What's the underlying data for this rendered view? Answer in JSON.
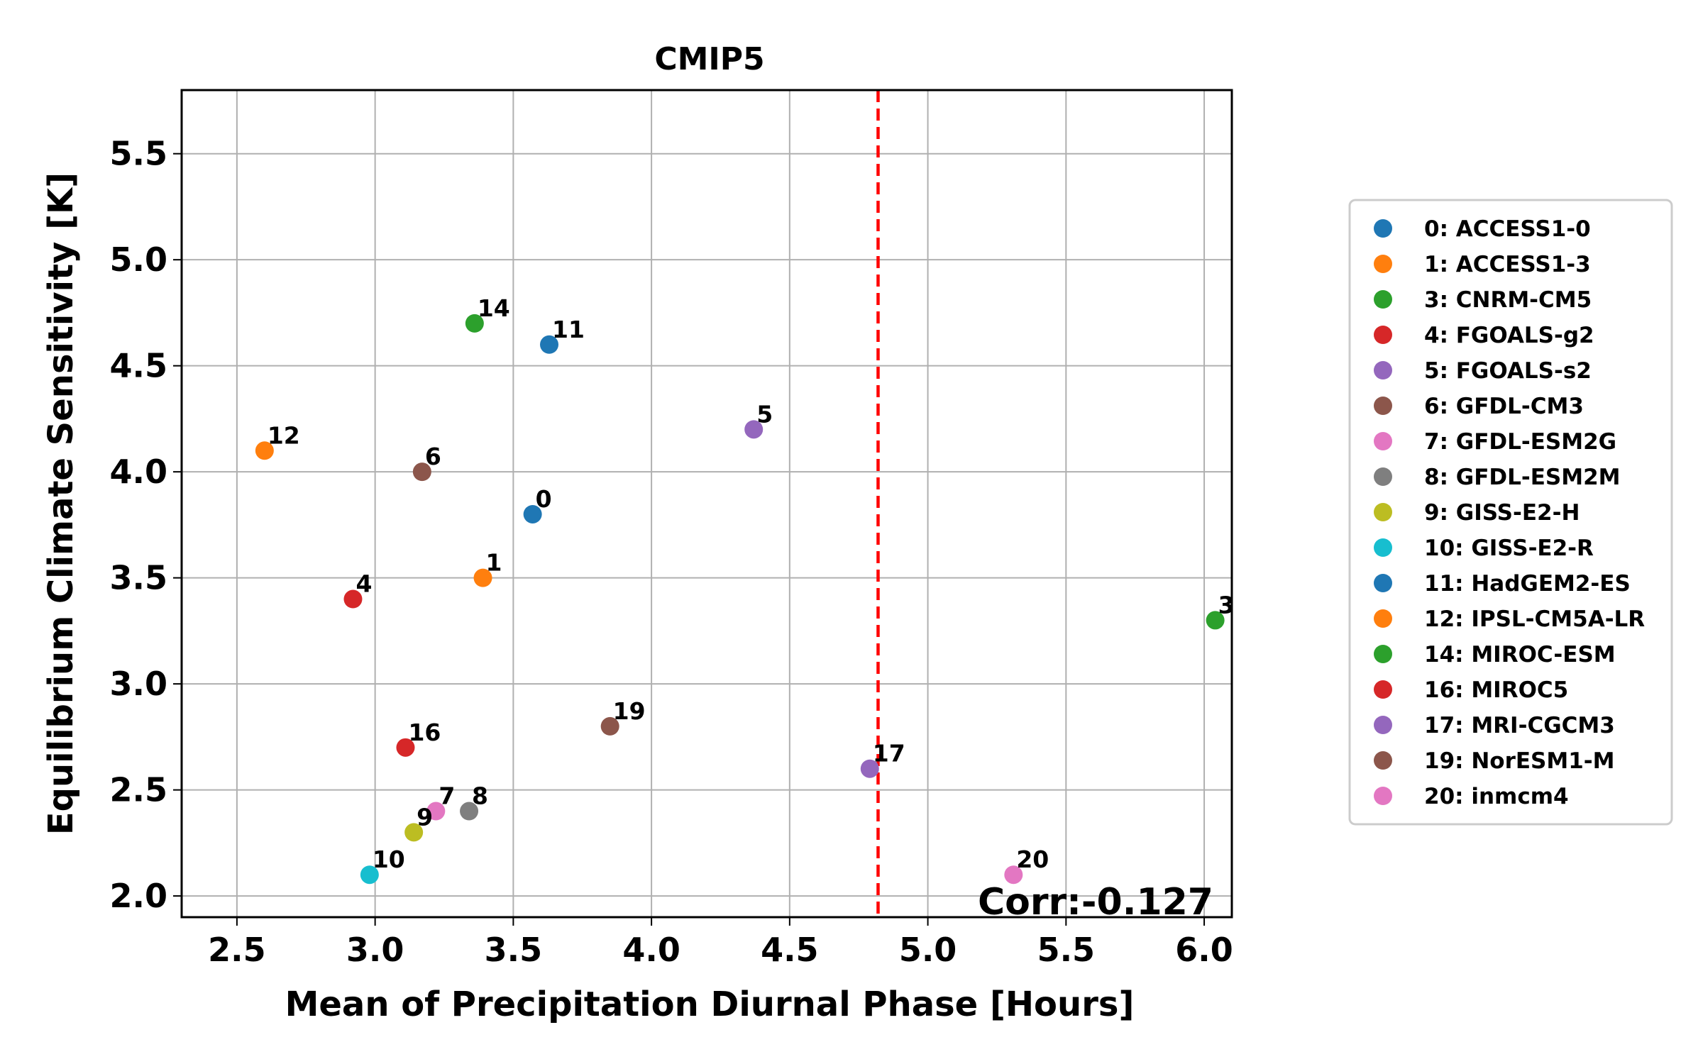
{
  "chart_data": {
    "type": "scatter",
    "title": "CMIP5",
    "xlabel": "Mean of Precipitation Diurnal Phase [Hours]",
    "ylabel": "Equilibrium Climate Sensitivity [K]",
    "xlim": [
      2.3,
      6.1
    ],
    "ylim": [
      1.9,
      5.8
    ],
    "xticks": [
      2.5,
      3.0,
      3.5,
      4.0,
      4.5,
      5.0,
      5.5,
      6.0
    ],
    "yticks": [
      2.0,
      2.5,
      3.0,
      3.5,
      4.0,
      4.5,
      5.0,
      5.5
    ],
    "xtick_labels": [
      "2.5",
      "3.0",
      "3.5",
      "4.0",
      "4.5",
      "5.0",
      "5.5",
      "6.0"
    ],
    "ytick_labels": [
      "2.0",
      "2.5",
      "3.0",
      "3.5",
      "4.0",
      "4.5",
      "5.0",
      "5.5"
    ],
    "grid": true,
    "legend_position": "right",
    "reference_line": {
      "orientation": "vertical",
      "x": 4.82,
      "color": "#ff0000",
      "style": "dashed"
    },
    "annotation": "Corr:-0.127",
    "points": [
      {
        "label": "0",
        "legend": "0: ACCESS1-0",
        "x": 3.57,
        "y": 3.8,
        "color": "#1f77b4"
      },
      {
        "label": "1",
        "legend": "1: ACCESS1-3",
        "x": 3.39,
        "y": 3.5,
        "color": "#ff7f0e"
      },
      {
        "label": "3",
        "legend": "3: CNRM-CM5",
        "x": 6.04,
        "y": 3.3,
        "color": "#2ca02c"
      },
      {
        "label": "4",
        "legend": "4: FGOALS-g2",
        "x": 2.92,
        "y": 3.4,
        "color": "#d62728"
      },
      {
        "label": "5",
        "legend": "5: FGOALS-s2",
        "x": 4.37,
        "y": 4.2,
        "color": "#9467bd"
      },
      {
        "label": "6",
        "legend": "6: GFDL-CM3",
        "x": 3.17,
        "y": 4.0,
        "color": "#8c564b"
      },
      {
        "label": "7",
        "legend": "7: GFDL-ESM2G",
        "x": 3.22,
        "y": 2.4,
        "color": "#e377c2"
      },
      {
        "label": "8",
        "legend": "8: GFDL-ESM2M",
        "x": 3.34,
        "y": 2.4,
        "color": "#7f7f7f"
      },
      {
        "label": "9",
        "legend": "9: GISS-E2-H",
        "x": 3.14,
        "y": 2.3,
        "color": "#bcbd22"
      },
      {
        "label": "10",
        "legend": "10: GISS-E2-R",
        "x": 2.98,
        "y": 2.1,
        "color": "#17becf"
      },
      {
        "label": "11",
        "legend": "11: HadGEM2-ES",
        "x": 3.63,
        "y": 4.6,
        "color": "#1f77b4"
      },
      {
        "label": "12",
        "legend": "12: IPSL-CM5A-LR",
        "x": 2.6,
        "y": 4.1,
        "color": "#ff7f0e"
      },
      {
        "label": "14",
        "legend": "14: MIROC-ESM",
        "x": 3.36,
        "y": 4.7,
        "color": "#2ca02c"
      },
      {
        "label": "16",
        "legend": "16: MIROC5",
        "x": 3.11,
        "y": 2.7,
        "color": "#d62728"
      },
      {
        "label": "17",
        "legend": "17: MRI-CGCM3",
        "x": 4.79,
        "y": 2.6,
        "color": "#9467bd"
      },
      {
        "label": "19",
        "legend": "19: NorESM1-M",
        "x": 3.85,
        "y": 2.8,
        "color": "#8c564b"
      },
      {
        "label": "20",
        "legend": "20: inmcm4",
        "x": 5.31,
        "y": 2.1,
        "color": "#e377c2"
      }
    ]
  }
}
